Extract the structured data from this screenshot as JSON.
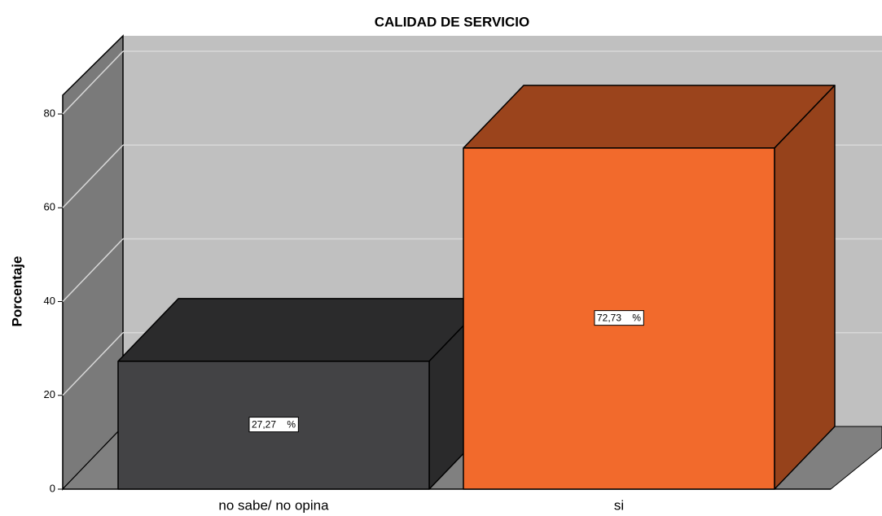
{
  "chart_data": {
    "type": "bar3d",
    "title": "CALIDAD DE SERVICIO",
    "y_label": "Porcentaje",
    "categories": [
      "no sabe/ no opina",
      "si"
    ],
    "values": [
      27.27,
      72.73
    ],
    "value_labels": [
      "27,27    %",
      "72,73    %"
    ],
    "colors": [
      "#434345",
      "#f26a2c"
    ],
    "ylim": [
      0,
      84
    ],
    "yticks": [
      0,
      20,
      40,
      60,
      80
    ],
    "grid": true
  }
}
